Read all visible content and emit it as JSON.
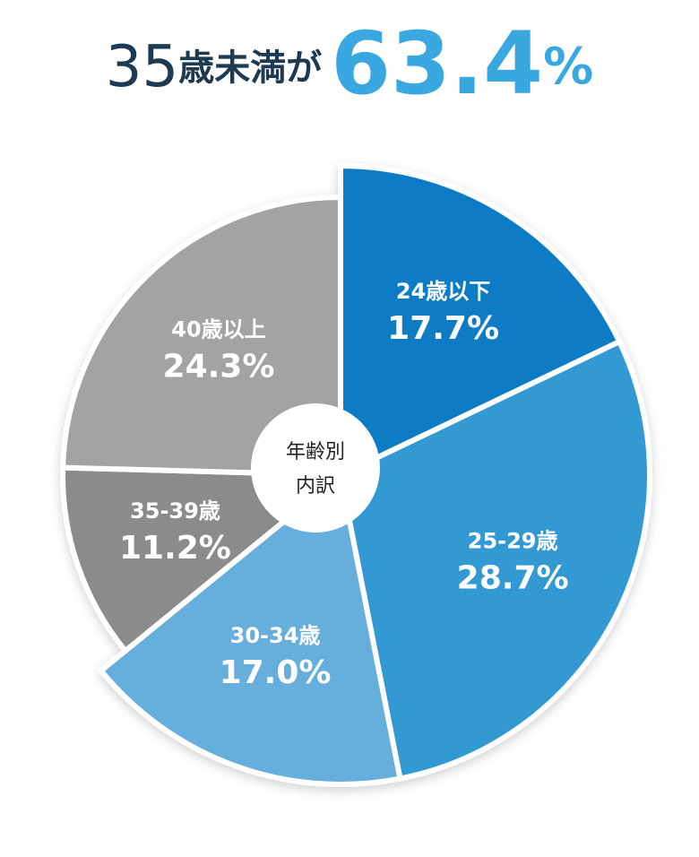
{
  "chart_data": {
    "type": "pie",
    "title": [
      "35",
      "歳未満が",
      "63.4",
      "%"
    ],
    "center_label": [
      "年齢別",
      "内訳"
    ],
    "categories": [
      "24歳以下",
      "25-29歳",
      "30-34歳",
      "35-39歳",
      "40歳以上"
    ],
    "values": [
      17.7,
      28.7,
      17.0,
      11.2,
      24.3
    ],
    "value_labels": [
      "17.7%",
      "28.7%",
      "17.0%",
      "11.2%",
      "24.3%"
    ],
    "colors": [
      "#0a7cc4",
      "#3399d3",
      "#66aedb",
      "#8b8b8b",
      "#a3a3a3"
    ]
  }
}
